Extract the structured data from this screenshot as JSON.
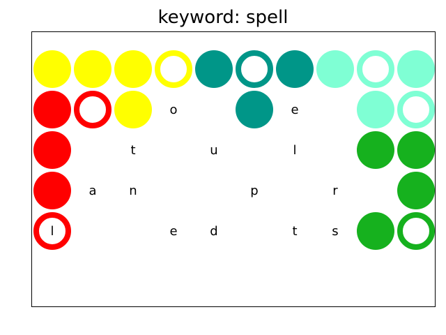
{
  "title": "keyword: spell",
  "colors": {
    "yellow": "#ffff00",
    "teal": "#009688",
    "mint": "#7fffd4",
    "red": "#ff0000",
    "green": "#16b11e"
  },
  "grid": {
    "rows": 5,
    "cols": 10,
    "cells": [
      {
        "row": 0,
        "col": 0,
        "kind": "disc",
        "color": "yellow",
        "letter": ""
      },
      {
        "row": 0,
        "col": 1,
        "kind": "disc",
        "color": "yellow",
        "letter": ""
      },
      {
        "row": 0,
        "col": 2,
        "kind": "disc",
        "color": "yellow",
        "letter": ""
      },
      {
        "row": 0,
        "col": 3,
        "kind": "ring",
        "color": "yellow",
        "letter": ""
      },
      {
        "row": 0,
        "col": 4,
        "kind": "disc",
        "color": "teal",
        "letter": ""
      },
      {
        "row": 0,
        "col": 5,
        "kind": "ring",
        "color": "teal",
        "letter": ""
      },
      {
        "row": 0,
        "col": 6,
        "kind": "disc",
        "color": "teal",
        "letter": ""
      },
      {
        "row": 0,
        "col": 7,
        "kind": "disc",
        "color": "mint",
        "letter": ""
      },
      {
        "row": 0,
        "col": 8,
        "kind": "ring",
        "color": "mint",
        "letter": ""
      },
      {
        "row": 0,
        "col": 9,
        "kind": "disc",
        "color": "mint",
        "letter": ""
      },
      {
        "row": 1,
        "col": 0,
        "kind": "disc",
        "color": "red",
        "letter": ""
      },
      {
        "row": 1,
        "col": 1,
        "kind": "ring",
        "color": "red",
        "letter": ""
      },
      {
        "row": 1,
        "col": 2,
        "kind": "disc",
        "color": "yellow",
        "letter": ""
      },
      {
        "row": 1,
        "col": 3,
        "kind": "text",
        "color": "",
        "letter": "o"
      },
      {
        "row": 1,
        "col": 5,
        "kind": "disc",
        "color": "teal",
        "letter": ""
      },
      {
        "row": 1,
        "col": 6,
        "kind": "text",
        "color": "",
        "letter": "e"
      },
      {
        "row": 1,
        "col": 8,
        "kind": "disc",
        "color": "mint",
        "letter": ""
      },
      {
        "row": 1,
        "col": 9,
        "kind": "ring",
        "color": "mint",
        "letter": ""
      },
      {
        "row": 2,
        "col": 0,
        "kind": "disc",
        "color": "red",
        "letter": ""
      },
      {
        "row": 2,
        "col": 2,
        "kind": "text",
        "color": "",
        "letter": "t"
      },
      {
        "row": 2,
        "col": 4,
        "kind": "text",
        "color": "",
        "letter": "u"
      },
      {
        "row": 2,
        "col": 6,
        "kind": "text",
        "color": "",
        "letter": "l"
      },
      {
        "row": 2,
        "col": 8,
        "kind": "disc",
        "color": "green",
        "letter": ""
      },
      {
        "row": 2,
        "col": 9,
        "kind": "disc",
        "color": "green",
        "letter": ""
      },
      {
        "row": 3,
        "col": 0,
        "kind": "disc",
        "color": "red",
        "letter": ""
      },
      {
        "row": 3,
        "col": 1,
        "kind": "text",
        "color": "",
        "letter": "a"
      },
      {
        "row": 3,
        "col": 2,
        "kind": "text",
        "color": "",
        "letter": "n"
      },
      {
        "row": 3,
        "col": 5,
        "kind": "text",
        "color": "",
        "letter": "p"
      },
      {
        "row": 3,
        "col": 7,
        "kind": "text",
        "color": "",
        "letter": "r"
      },
      {
        "row": 3,
        "col": 9,
        "kind": "disc",
        "color": "green",
        "letter": ""
      },
      {
        "row": 4,
        "col": 0,
        "kind": "ring",
        "color": "red",
        "letter": "l"
      },
      {
        "row": 4,
        "col": 3,
        "kind": "text",
        "color": "",
        "letter": "e"
      },
      {
        "row": 4,
        "col": 4,
        "kind": "text",
        "color": "",
        "letter": "d"
      },
      {
        "row": 4,
        "col": 6,
        "kind": "text",
        "color": "",
        "letter": "t"
      },
      {
        "row": 4,
        "col": 7,
        "kind": "text",
        "color": "",
        "letter": "s"
      },
      {
        "row": 4,
        "col": 8,
        "kind": "disc",
        "color": "green",
        "letter": ""
      },
      {
        "row": 4,
        "col": 9,
        "kind": "ring",
        "color": "green",
        "letter": ""
      }
    ]
  }
}
